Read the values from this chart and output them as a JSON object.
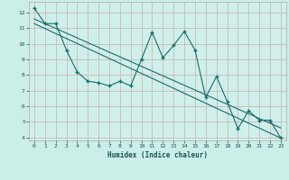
{
  "xlabel": "Humidex (Indice chaleur)",
  "ylabel": "",
  "xlim": [
    -0.5,
    23.5
  ],
  "ylim": [
    3.8,
    12.7
  ],
  "xticks": [
    0,
    1,
    2,
    3,
    4,
    5,
    6,
    7,
    8,
    9,
    10,
    11,
    12,
    13,
    14,
    15,
    16,
    17,
    18,
    19,
    20,
    21,
    22,
    23
  ],
  "yticks": [
    4,
    5,
    6,
    7,
    8,
    9,
    10,
    11,
    12
  ],
  "bg_color": "#cceee8",
  "plot_bg_color": "#cff0ea",
  "line_color": "#1a6b6b",
  "grid_color": "#c8b8b8",
  "line1_x": [
    0,
    1,
    2,
    3,
    4,
    5,
    6,
    7,
    8,
    9,
    10,
    11,
    12,
    13,
    14,
    15,
    16,
    17,
    18,
    19,
    20,
    21,
    22,
    23
  ],
  "line1_y": [
    12.3,
    11.3,
    11.3,
    9.6,
    8.2,
    7.6,
    7.5,
    7.3,
    7.6,
    7.3,
    9.0,
    10.75,
    9.1,
    9.9,
    10.8,
    9.6,
    6.55,
    7.9,
    6.3,
    4.55,
    5.7,
    5.1,
    5.1,
    3.95
  ],
  "line2_x": [
    0,
    23
  ],
  "line2_y": [
    11.3,
    3.95
  ],
  "line3_x": [
    0,
    23
  ],
  "line3_y": [
    11.6,
    4.6
  ]
}
